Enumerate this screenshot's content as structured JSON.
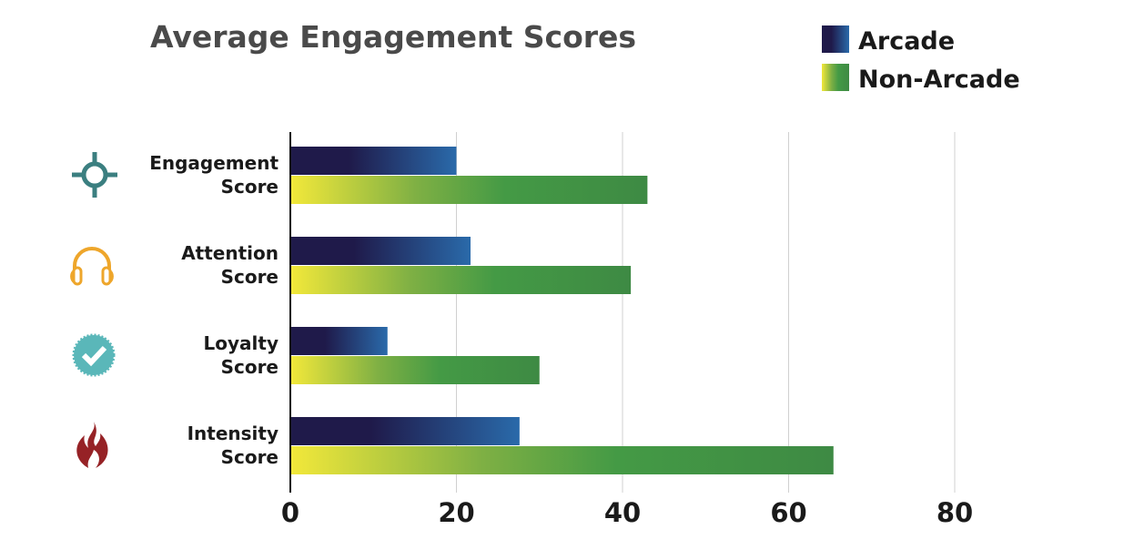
{
  "chart_data": {
    "type": "bar",
    "orientation": "horizontal",
    "title": "Average Engagement Scores",
    "categories": [
      {
        "line1": "Engagement",
        "line2": "Score",
        "icon": "crosshair-icon"
      },
      {
        "line1": "Attention",
        "line2": "Score",
        "icon": "headphones-icon"
      },
      {
        "line1": "Loyalty",
        "line2": "Score",
        "icon": "verified-badge-icon"
      },
      {
        "line1": "Intensity",
        "line2": "Score",
        "icon": "flame-icon"
      }
    ],
    "series": [
      {
        "name": "Arcade",
        "values": [
          20,
          21.7,
          11.7,
          27.6
        ],
        "colors": [
          "#1f1a4a",
          "#2a6aaa"
        ]
      },
      {
        "name": "Non-Arcade",
        "values": [
          43,
          41,
          30,
          65.4
        ],
        "colors": [
          "#f2e83a",
          "#3e8a44"
        ]
      }
    ],
    "xlim": [
      0,
      90
    ],
    "xticks": [
      "0",
      "20",
      "40",
      "60",
      "80"
    ],
    "xtick_values": [
      0,
      20,
      40,
      60,
      80
    ],
    "grid": true,
    "legend": "top-right",
    "icon_colors": [
      "#3b7f80",
      "#eea62b",
      "#5ab7b9",
      "#962226"
    ]
  }
}
